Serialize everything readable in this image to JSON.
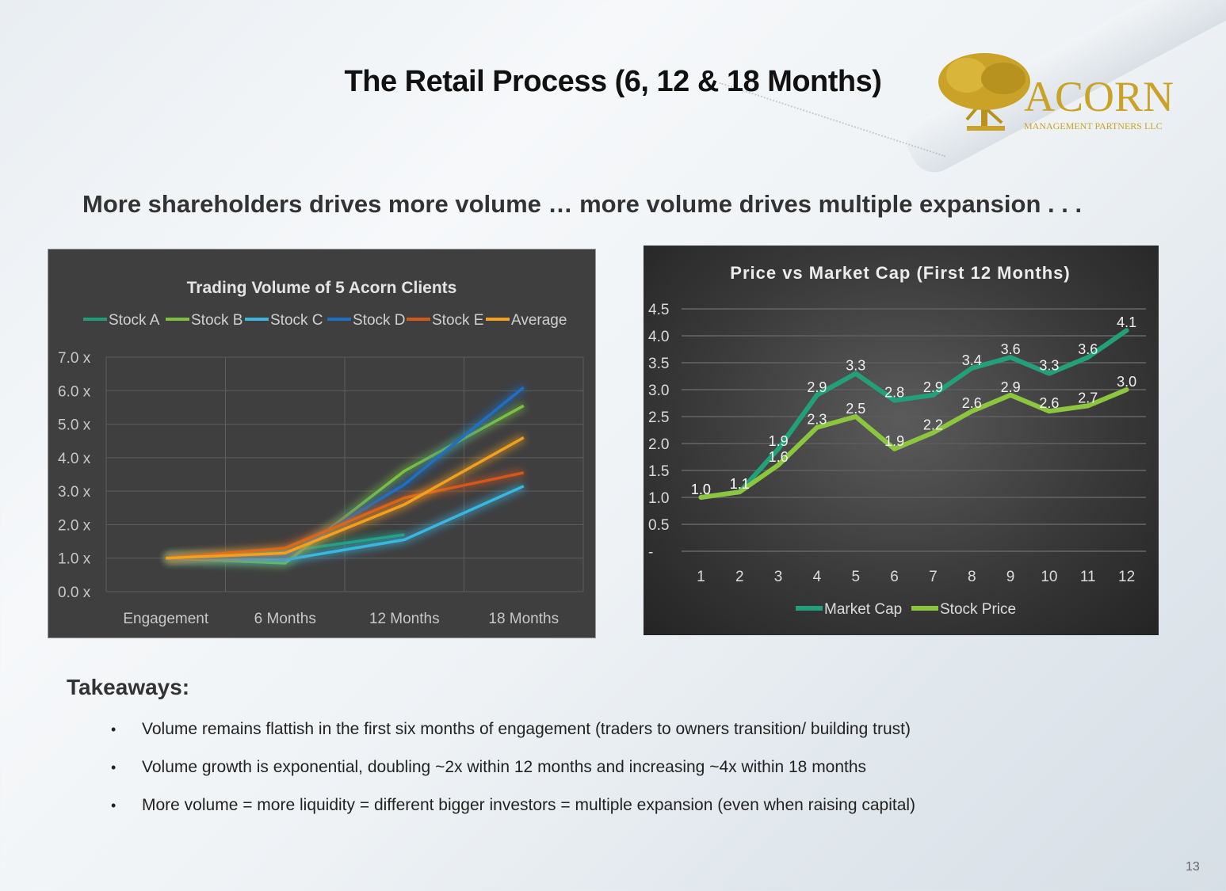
{
  "title": "The Retail Process (6, 12 & 18 Months)",
  "subtitle": "More shareholders drives more volume … more volume drives multiple expansion . . .",
  "logo": {
    "name": "ACORN",
    "tagline": "MANAGEMENT PARTNERS LLC",
    "color": "#c9a227"
  },
  "chart_data": [
    {
      "type": "line",
      "title": "Trading Volume of 5 Acorn Clients",
      "categories": [
        "Engagement",
        "6  Months",
        "12 Months",
        "18 Months"
      ],
      "y_ticks": [
        "0.0 x",
        "1.0 x",
        "2.0 x",
        "3.0 x",
        "4.0 x",
        "5.0 x",
        "6.0 x",
        "7.0 x"
      ],
      "ylim": [
        0,
        7
      ],
      "grid": true,
      "legend_position": "top",
      "series": [
        {
          "name": "Stock A",
          "color": "#1e9e78",
          "values": [
            1.0,
            1.2,
            1.7,
            null
          ]
        },
        {
          "name": "Stock B",
          "color": "#7dc23f",
          "values": [
            1.0,
            0.85,
            3.6,
            5.55
          ]
        },
        {
          "name": "Stock C",
          "color": "#3ab7e0",
          "values": [
            1.0,
            0.95,
            1.55,
            3.15
          ]
        },
        {
          "name": "Stock D",
          "color": "#1f6fc4",
          "values": [
            1.0,
            1.05,
            3.2,
            6.1
          ]
        },
        {
          "name": "Stock E",
          "color": "#d4581c",
          "values": [
            1.0,
            1.3,
            2.8,
            3.55
          ]
        },
        {
          "name": "Average",
          "color": "#f2a01e",
          "values": [
            1.0,
            1.15,
            2.6,
            4.6
          ]
        }
      ]
    },
    {
      "type": "line",
      "title": "Price vs Market Cap (First 12 Months)",
      "categories": [
        "1",
        "2",
        "3",
        "4",
        "5",
        "6",
        "7",
        "8",
        "9",
        "10",
        "11",
        "12"
      ],
      "y_ticks": [
        "-",
        "0.5",
        "1.0",
        "1.5",
        "2.0",
        "2.5",
        "3.0",
        "3.5",
        "4.0",
        "4.5"
      ],
      "ylim": [
        0,
        4.5
      ],
      "grid": true,
      "legend_position": "bottom",
      "series": [
        {
          "name": "Market Cap",
          "color": "#22a07a",
          "values": [
            1.0,
            1.1,
            1.9,
            2.9,
            3.3,
            2.8,
            2.9,
            3.4,
            3.6,
            3.3,
            3.6,
            4.1
          ],
          "labels": [
            "1.0",
            "1.1",
            "1.9",
            "2.9",
            "3.3",
            "2.8",
            "2.9",
            "3.4",
            "3.6",
            "3.3",
            "3.6",
            "4.1"
          ]
        },
        {
          "name": "Stock Price",
          "color": "#8cc63f",
          "values": [
            1.0,
            1.1,
            1.6,
            2.3,
            2.5,
            1.9,
            2.2,
            2.6,
            2.9,
            2.6,
            2.7,
            3.0
          ],
          "labels": [
            "1.0",
            "1.1",
            "1.6",
            "2.3",
            "2.5",
            "1.9",
            "2.2",
            "2.6",
            "2.9",
            "2.6",
            "2.7",
            "3.0"
          ]
        }
      ]
    }
  ],
  "takeaways": {
    "heading": "Takeaways:",
    "bullet_glyph": "•",
    "items": [
      "Volume remains flattish in the first six months of engagement (traders to owners transition/ building trust)",
      "Volume growth is exponential, doubling ~2x within 12 months and increasing ~4x within 18 months",
      "More volume = more liquidity = different bigger investors = multiple expansion (even when raising capital)"
    ]
  },
  "page_number": "13"
}
